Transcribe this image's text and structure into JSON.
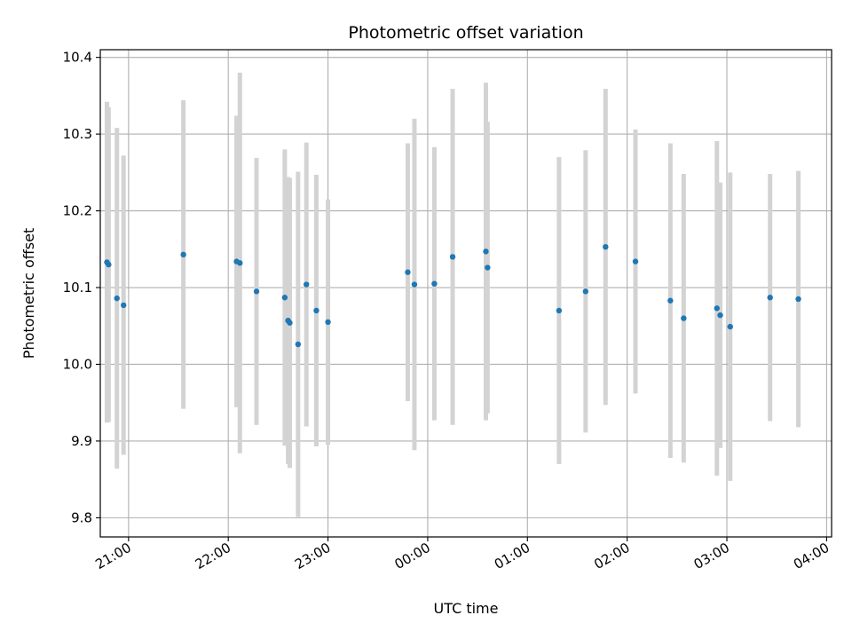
{
  "chart_data": {
    "type": "scatter",
    "title": "Photometric offset variation",
    "xlabel": "UTC time",
    "ylabel": "Photometric offset",
    "x_unit": "UTC time (HH:MM), times after midnight belong to the following day",
    "xlim": [
      "20:43",
      "04:03"
    ],
    "ylim": [
      9.775,
      10.41
    ],
    "x_ticks": [
      "21:00",
      "22:00",
      "23:00",
      "00:00",
      "01:00",
      "02:00",
      "03:00",
      "04:00"
    ],
    "y_ticks": [
      9.8,
      9.9,
      10.0,
      10.1,
      10.2,
      10.3,
      10.4
    ],
    "grid": true,
    "legend": "none",
    "colors": {
      "points": "#1f77b4",
      "error_bars": "#d3d3d3",
      "grid": "#b0b0b0"
    },
    "points": [
      {
        "x": "20:47",
        "y": 10.133,
        "err": 0.209
      },
      {
        "x": "20:48",
        "y": 10.13,
        "err": 0.205
      },
      {
        "x": "20:53",
        "y": 10.086,
        "err": 0.222
      },
      {
        "x": "20:57",
        "y": 10.077,
        "err": 0.195
      },
      {
        "x": "21:33",
        "y": 10.143,
        "err": 0.201
      },
      {
        "x": "22:05",
        "y": 10.134,
        "err": 0.19
      },
      {
        "x": "22:07",
        "y": 10.132,
        "err": 0.248
      },
      {
        "x": "22:17",
        "y": 10.095,
        "err": 0.174
      },
      {
        "x": "22:34",
        "y": 10.087,
        "err": 0.193
      },
      {
        "x": "22:36",
        "y": 10.057,
        "err": 0.187
      },
      {
        "x": "22:37",
        "y": 10.054,
        "err": 0.189
      },
      {
        "x": "22:42",
        "y": 10.026,
        "err": 0.225
      },
      {
        "x": "22:47",
        "y": 10.104,
        "err": 0.185
      },
      {
        "x": "22:53",
        "y": 10.07,
        "err": 0.177
      },
      {
        "x": "23:00",
        "y": 10.055,
        "err": 0.16
      },
      {
        "x": "23:48",
        "y": 10.12,
        "err": 0.168
      },
      {
        "x": "23:52",
        "y": 10.104,
        "err": 0.216
      },
      {
        "x": "00:04",
        "y": 10.105,
        "err": 0.178
      },
      {
        "x": "00:15",
        "y": 10.14,
        "err": 0.219
      },
      {
        "x": "00:35",
        "y": 10.147,
        "err": 0.22
      },
      {
        "x": "00:36",
        "y": 10.126,
        "err": 0.19
      },
      {
        "x": "01:19",
        "y": 10.07,
        "err": 0.2
      },
      {
        "x": "01:35",
        "y": 10.095,
        "err": 0.184
      },
      {
        "x": "01:47",
        "y": 10.153,
        "err": 0.206
      },
      {
        "x": "02:05",
        "y": 10.134,
        "err": 0.172
      },
      {
        "x": "02:26",
        "y": 10.083,
        "err": 0.205
      },
      {
        "x": "02:34",
        "y": 10.06,
        "err": 0.188
      },
      {
        "x": "02:54",
        "y": 10.073,
        "err": 0.218
      },
      {
        "x": "02:56",
        "y": 10.064,
        "err": 0.173
      },
      {
        "x": "03:02",
        "y": 10.049,
        "err": 0.201
      },
      {
        "x": "03:26",
        "y": 10.087,
        "err": 0.161
      },
      {
        "x": "03:43",
        "y": 10.085,
        "err": 0.167
      }
    ]
  }
}
